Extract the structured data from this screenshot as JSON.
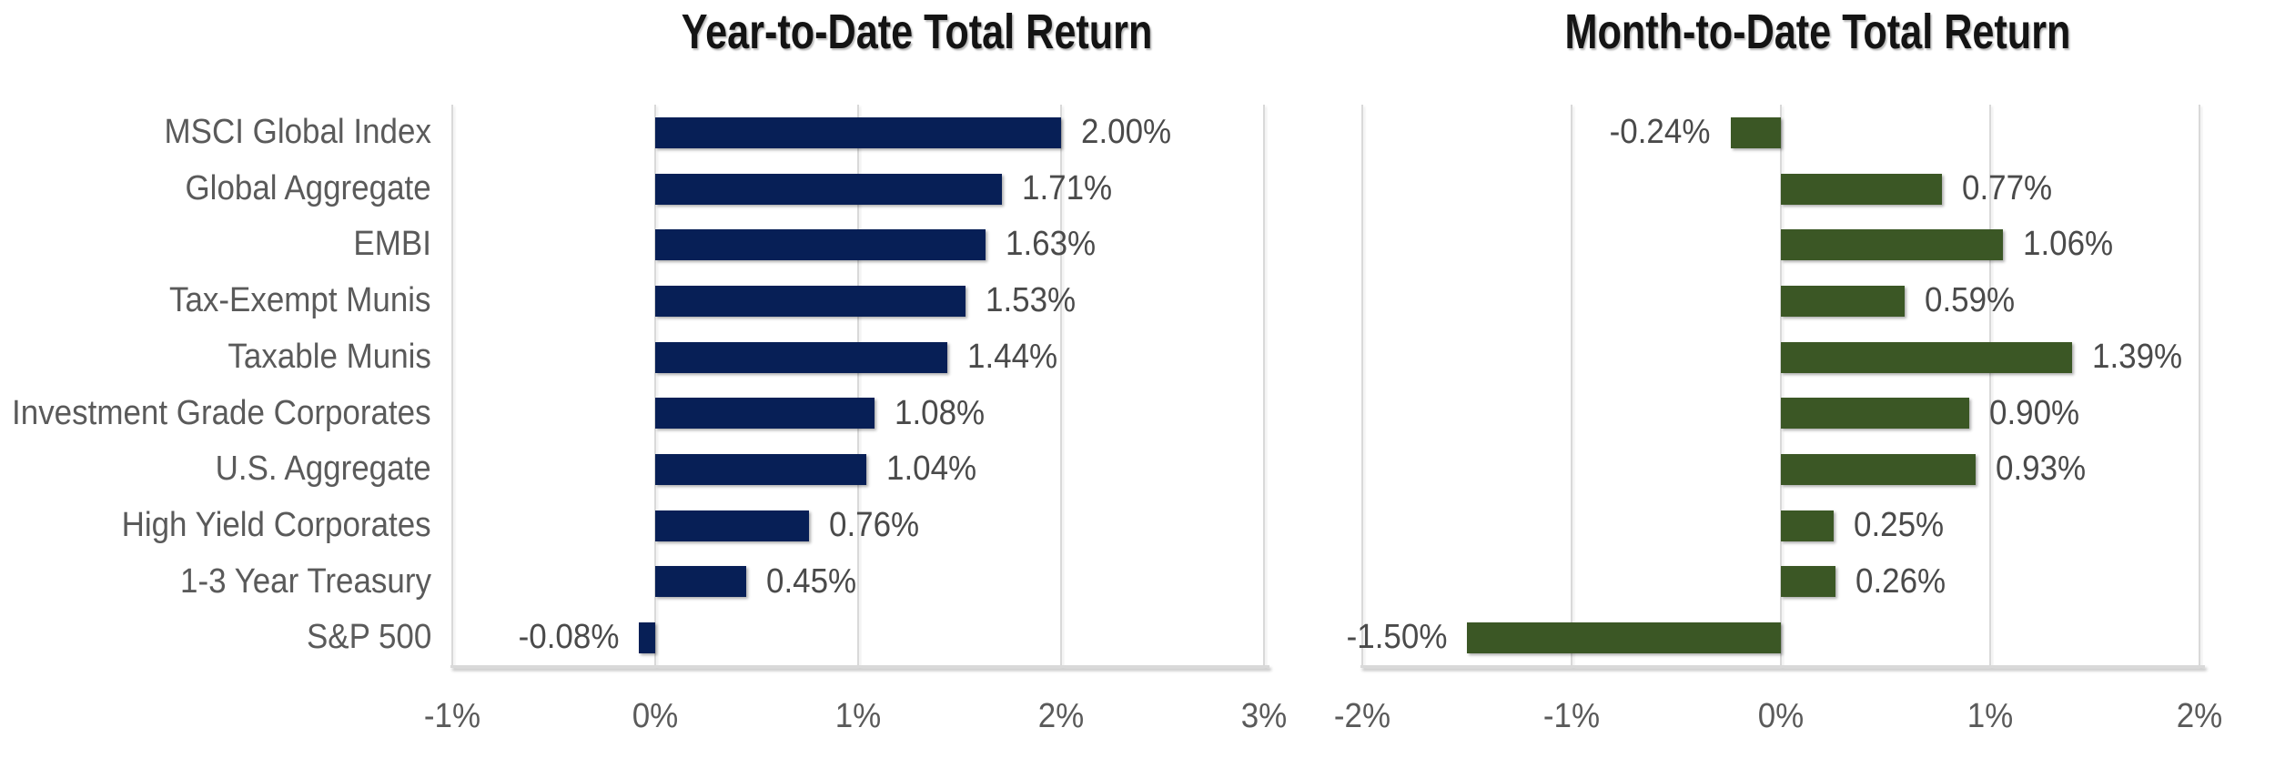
{
  "chart_data": [
    {
      "type": "bar",
      "orientation": "horizontal",
      "title": "Year-to-Date Total Return",
      "categories": [
        "MSCI Global Index",
        "Global Aggregate",
        "EMBI",
        "Tax-Exempt Munis",
        "Taxable Munis",
        "Investment Grade Corporates",
        "U.S. Aggregate",
        "High Yield Corporates",
        "1-3 Year Treasury",
        "S&P 500"
      ],
      "values": [
        2.0,
        1.71,
        1.63,
        1.53,
        1.44,
        1.08,
        1.04,
        0.76,
        0.45,
        -0.08
      ],
      "value_labels": [
        "2.00%",
        "1.71%",
        "1.63%",
        "1.53%",
        "1.44%",
        "1.08%",
        "1.04%",
        "0.76%",
        "0.45%",
        "-0.08%"
      ],
      "x_ticks": [
        {
          "value": -1,
          "label": "-1%"
        },
        {
          "value": 0,
          "label": "0%"
        },
        {
          "value": 1,
          "label": "1%"
        },
        {
          "value": 2,
          "label": "2%"
        },
        {
          "value": 3,
          "label": "3%"
        }
      ],
      "xlim": [
        -1,
        3
      ],
      "xlabel": "",
      "ylabel": "",
      "grid": true,
      "legend": false,
      "show_category_labels": true,
      "bar_color": "#071f56"
    },
    {
      "type": "bar",
      "orientation": "horizontal",
      "title": "Month-to-Date Total Return",
      "categories": [
        "MSCI Global Index",
        "Global Aggregate",
        "EMBI",
        "Tax-Exempt Munis",
        "Taxable Munis",
        "Investment Grade Corporates",
        "U.S. Aggregate",
        "High Yield Corporates",
        "1-3 Year Treasury",
        "S&P 500"
      ],
      "values": [
        -0.24,
        0.77,
        1.06,
        0.59,
        1.39,
        0.9,
        0.93,
        0.25,
        0.26,
        -1.5
      ],
      "value_labels": [
        "-0.24%",
        "0.77%",
        "1.06%",
        "0.59%",
        "1.39%",
        "0.90%",
        "0.93%",
        "0.25%",
        "0.26%",
        "-1.50%"
      ],
      "x_ticks": [
        {
          "value": -2,
          "label": "-2%"
        },
        {
          "value": -1,
          "label": "-1%"
        },
        {
          "value": 0,
          "label": "0%"
        },
        {
          "value": 1,
          "label": "1%"
        },
        {
          "value": 2,
          "label": "2%"
        }
      ],
      "xlim": [
        -2,
        2
      ],
      "xlabel": "",
      "ylabel": "",
      "grid": true,
      "legend": false,
      "show_category_labels": false,
      "bar_color": "#3b5725"
    }
  ]
}
